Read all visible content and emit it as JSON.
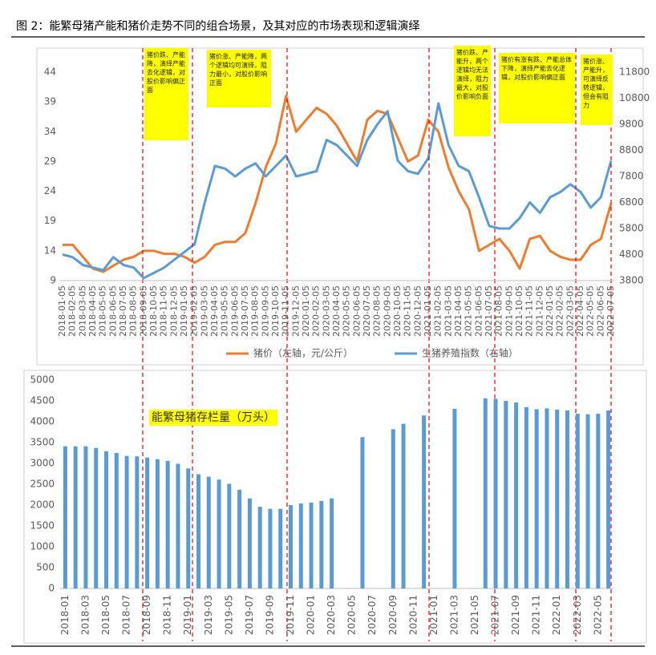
{
  "figure_title": "图 2：能繁母猪产能和猪价走势不同的组合场景，及其对应的市场表现和逻辑演绎",
  "chart_data": [
    {
      "type": "line",
      "categories": [
        "2018-01-05",
        "2018-02-05",
        "2018-03-05",
        "2018-04-05",
        "2018-05-05",
        "2018-06-05",
        "2018-07-05",
        "2018-08-05",
        "2018-09-05",
        "2018-10-05",
        "2018-11-05",
        "2018-12-05",
        "2019-01-05",
        "2019-02-05",
        "2019-03-05",
        "2019-04-05",
        "2019-05-05",
        "2019-06-05",
        "2019-07-05",
        "2019-08-05",
        "2019-09-05",
        "2019-10-05",
        "2019-11-05",
        "2019-12-05",
        "2020-01-05",
        "2020-02-05",
        "2020-03-05",
        "2020-04-05",
        "2020-05-05",
        "2020-06-05",
        "2020-07-05",
        "2020-08-05",
        "2020-09-05",
        "2020-10-05",
        "2020-11-05",
        "2020-12-05",
        "2021-01-05",
        "2021-02-05",
        "2021-03-05",
        "2021-04-05",
        "2021-05-05",
        "2021-06-05",
        "2021-07-05",
        "2021-08-05",
        "2021-09-05",
        "2021-10-05",
        "2021-11-05",
        "2021-12-05",
        "2022-01-05",
        "2022-02-05",
        "2022-03-05",
        "2022-04-05",
        "2022-05-05",
        "2022-06-05",
        "2022-07-05"
      ],
      "series": [
        {
          "name": "猪价（左轴，元/公斤）",
          "color": "#ed7d31",
          "values": [
            15,
            15,
            13,
            11,
            10.5,
            11.5,
            12.5,
            13,
            14,
            14,
            13.5,
            13.5,
            13,
            12,
            13,
            15,
            15.5,
            15.5,
            17,
            22,
            28,
            32,
            40,
            34,
            36,
            38,
            37,
            35,
            32,
            29,
            36,
            37.5,
            37,
            33,
            29,
            30,
            36,
            34,
            28,
            24,
            21,
            14,
            15,
            16,
            14,
            11,
            16,
            16.5,
            14,
            13,
            12.5,
            12.5,
            15,
            16,
            22
          ]
        },
        {
          "name": "生猪养殖指数（右轴）",
          "color": "#5b9bd5",
          "axis": "y2",
          "values": [
            4800,
            4700,
            4400,
            4300,
            4200,
            4700,
            4400,
            4300,
            3900,
            4100,
            4300,
            4600,
            4900,
            5200,
            6800,
            8200,
            8100,
            7800,
            8100,
            8300,
            7800,
            8200,
            8600,
            7800,
            7900,
            8000,
            9200,
            9000,
            8600,
            8200,
            9200,
            9800,
            10300,
            8400,
            8000,
            7900,
            8500,
            10600,
            9000,
            8200,
            8000,
            7000,
            5900,
            5800,
            5800,
            6200,
            6800,
            6400,
            7000,
            7200,
            7500,
            7200,
            6600,
            7000,
            8400
          ]
        }
      ],
      "ylim": [
        9,
        44
      ],
      "yticks": [
        9,
        14,
        19,
        24,
        29,
        34,
        39,
        44
      ],
      "y2lim": [
        3800,
        11800
      ],
      "y2ticks": [
        3800,
        4800,
        5800,
        6800,
        7800,
        8800,
        9800,
        10800,
        11800
      ],
      "annotations": [
        "猪价跌、产能降，演绎产能去化逻辑，对股价影响偏正面",
        "猪价涨、产能降，两个逻辑均可演绎，阻力最小，对股价影响正面",
        "猪价跌、产能升，两个逻辑均无法演绎，阻力最大，对股价影响负面",
        "猪价有涨有跌、产能总体下降，演绎产能去化逻辑，对股价影响偏正面",
        "猪价涨、产能升，可演绎反转逻辑，但会有阻力"
      ]
    },
    {
      "type": "bar",
      "title": "能繁母猪存栏量（万头）",
      "color": "#5b9bd5",
      "categories": [
        "2018-01",
        null,
        "2018-03",
        null,
        "2018-05",
        null,
        "2018-07",
        null,
        "2018-09",
        null,
        "2018-11",
        null,
        "2019-01",
        null,
        "2019-03",
        null,
        "2019-05",
        null,
        "2019-07",
        null,
        "2019-09",
        null,
        "2019-11",
        null,
        "2020-01",
        null,
        "2020-03",
        null,
        "2020-05",
        null,
        "2020-07",
        null,
        "2020-09",
        null,
        "2020-11",
        null,
        "2021-01",
        null,
        "2021-03",
        null,
        "2021-05",
        null,
        "2021-07",
        null,
        "2021-09",
        null,
        "2021-11",
        null,
        "2022-01",
        null,
        "2022-03",
        null,
        "2022-05",
        null
      ],
      "values": [
        3410,
        3410,
        3410,
        3370,
        3290,
        3250,
        3180,
        3170,
        3140,
        3100,
        3060,
        2990,
        2880,
        2740,
        2680,
        2610,
        2510,
        2370,
        2160,
        1960,
        1910,
        1910,
        2000,
        2040,
        2060,
        2100,
        2160,
        null,
        null,
        3630,
        null,
        null,
        3820,
        3950,
        null,
        4150,
        null,
        null,
        4310,
        null,
        null,
        4560,
        4550,
        4500,
        4460,
        4350,
        4300,
        4320,
        4290,
        4270,
        4190,
        4180,
        4190,
        4270
      ],
      "ylim": [
        0,
        5000
      ],
      "yticks": [
        0,
        500,
        1000,
        1500,
        2000,
        2500,
        3000,
        3500,
        4000,
        4500,
        5000
      ]
    }
  ]
}
